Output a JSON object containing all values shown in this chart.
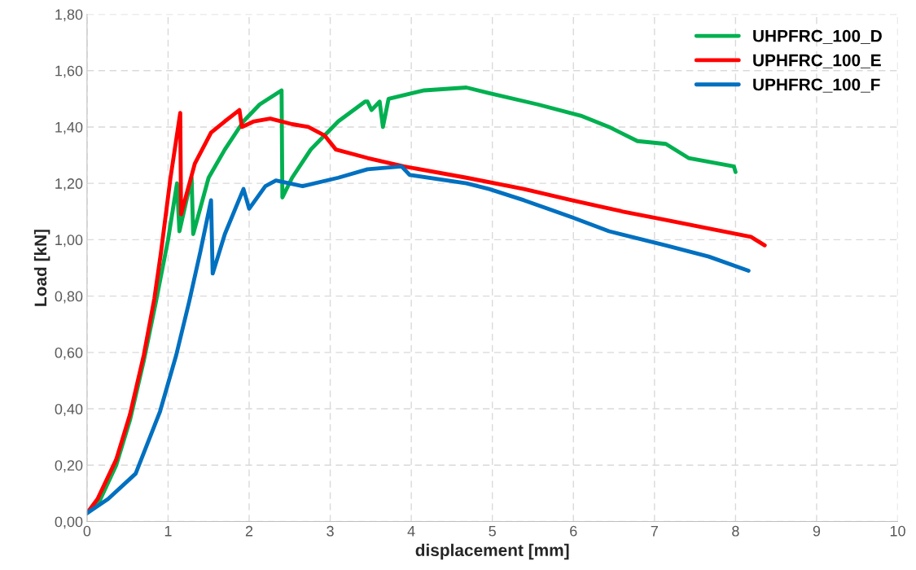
{
  "chart_data": {
    "type": "line",
    "xlabel": "displacement [mm]",
    "ylabel": "Load [kN]",
    "xlim": [
      0,
      10
    ],
    "xticks": [
      0,
      1,
      2,
      3,
      4,
      5,
      6,
      7,
      8,
      9,
      10
    ],
    "ylim": [
      0,
      1.8
    ],
    "yticks": [
      {
        "value": 0,
        "label": "0,00"
      },
      {
        "value": 0.2,
        "label": "0,20"
      },
      {
        "value": 0.4,
        "label": "0,40"
      },
      {
        "value": 0.6,
        "label": "0,60"
      },
      {
        "value": 0.8,
        "label": "0,80"
      },
      {
        "value": 1.0,
        "label": "1,00"
      },
      {
        "value": 1.2,
        "label": "1,20"
      },
      {
        "value": 1.4,
        "label": "1,40"
      },
      {
        "value": 1.6,
        "label": "1,60"
      },
      {
        "value": 1.8,
        "label": "1,80"
      }
    ],
    "grid": true,
    "legend": "top right",
    "marker": "none",
    "line_style": "solid",
    "series": [
      {
        "name": "UHPFRC_100_D",
        "color": "#00b050",
        "x": [
          0,
          0.15,
          0.36,
          0.53,
          0.7,
          0.85,
          1.0,
          1.11,
          1.14,
          1.29,
          1.31,
          1.5,
          1.7,
          1.93,
          2.13,
          2.4,
          2.41,
          2.53,
          2.76,
          3.1,
          3.43,
          3.46,
          3.51,
          3.61,
          3.65,
          3.72,
          4.16,
          4.68,
          4.96,
          5.56,
          6.09,
          6.44,
          6.79,
          7.14,
          7.42,
          7.98,
          8.0
        ],
        "values": [
          0.03,
          0.07,
          0.2,
          0.36,
          0.57,
          0.78,
          1.0,
          1.2,
          1.03,
          1.22,
          1.02,
          1.22,
          1.32,
          1.42,
          1.48,
          1.53,
          1.15,
          1.22,
          1.32,
          1.42,
          1.49,
          1.49,
          1.46,
          1.49,
          1.4,
          1.5,
          1.53,
          1.54,
          1.52,
          1.48,
          1.44,
          1.4,
          1.35,
          1.34,
          1.29,
          1.26,
          1.24
        ]
      },
      {
        "name": "UPHFRC_100_E",
        "color": "#ff0000",
        "x": [
          0,
          0.13,
          0.36,
          0.53,
          0.7,
          0.83,
          0.91,
          1.03,
          1.15,
          1.16,
          1.33,
          1.53,
          1.7,
          1.88,
          1.91,
          2.06,
          2.26,
          2.53,
          2.73,
          2.93,
          3.07,
          3.46,
          3.91,
          4.68,
          5.39,
          5.98,
          6.61,
          7.14,
          7.67,
          8.19,
          8.36
        ],
        "values": [
          0.03,
          0.08,
          0.22,
          0.38,
          0.59,
          0.79,
          0.95,
          1.22,
          1.45,
          1.09,
          1.27,
          1.38,
          1.42,
          1.46,
          1.4,
          1.42,
          1.43,
          1.41,
          1.4,
          1.37,
          1.32,
          1.29,
          1.26,
          1.22,
          1.18,
          1.14,
          1.1,
          1.07,
          1.04,
          1.01,
          0.98
        ]
      },
      {
        "name": "UPHFRC_100_F",
        "color": "#0070c0",
        "x": [
          0,
          0.26,
          0.6,
          0.9,
          1.1,
          1.26,
          1.4,
          1.53,
          1.55,
          1.7,
          1.93,
          2.0,
          2.2,
          2.33,
          2.66,
          3.1,
          3.46,
          3.88,
          3.98,
          4.68,
          4.96,
          5.39,
          5.98,
          6.44,
          7.14,
          7.67,
          8.16
        ],
        "values": [
          0.03,
          0.08,
          0.17,
          0.39,
          0.59,
          0.78,
          0.96,
          1.14,
          0.88,
          1.02,
          1.18,
          1.11,
          1.19,
          1.21,
          1.19,
          1.22,
          1.25,
          1.26,
          1.23,
          1.2,
          1.18,
          1.14,
          1.08,
          1.03,
          0.98,
          0.94,
          0.89
        ]
      }
    ]
  }
}
